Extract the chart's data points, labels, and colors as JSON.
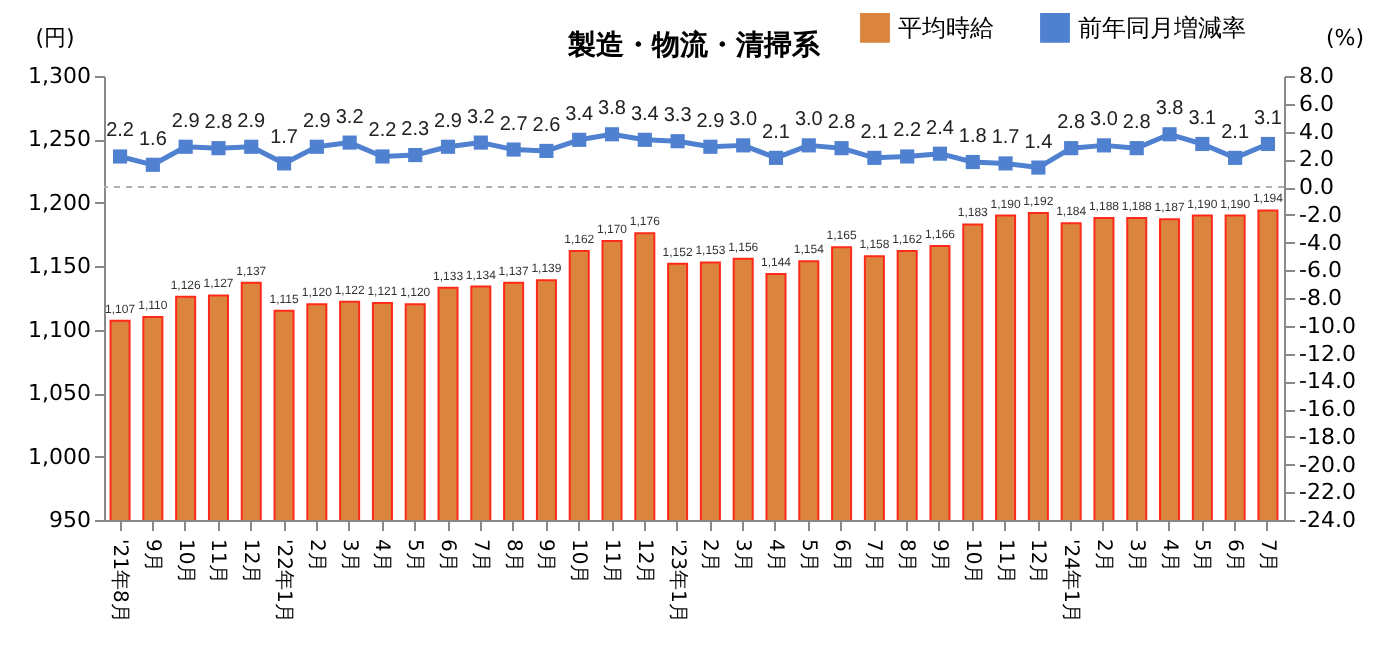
{
  "chart_data": {
    "type": "bar",
    "title": "製造・物流・清掃系",
    "ylabel": "(円)",
    "y2label": "(%)",
    "categories": [
      "'21年8月",
      "9月",
      "10月",
      "11月",
      "12月",
      "'22年1月",
      "2月",
      "3月",
      "4月",
      "5月",
      "6月",
      "7月",
      "8月",
      "9月",
      "10月",
      "11月",
      "12月",
      "'23年1月",
      "2月",
      "3月",
      "4月",
      "5月",
      "6月",
      "7月",
      "8月",
      "9月",
      "10月",
      "11月",
      "12月",
      "'24年1月",
      "2月",
      "3月",
      "4月",
      "5月",
      "6月",
      "7月"
    ],
    "series": [
      {
        "name": "平均時給",
        "color": "#db843d",
        "values": [
          1107,
          1110,
          1126,
          1127,
          1137,
          1115,
          1120,
          1122,
          1121,
          1120,
          1133,
          1134,
          1137,
          1139,
          1162,
          1170,
          1176,
          1152,
          1153,
          1156,
          1144,
          1154,
          1165,
          1158,
          1162,
          1166,
          1183,
          1190,
          1192,
          1184,
          1188,
          1188,
          1187,
          1190,
          1190,
          1194
        ],
        "value_labels": [
          "1,107",
          "1,110",
          "1,126",
          "1,127",
          "1,137",
          "1,115",
          "1,120",
          "1,122",
          "1,121",
          "1,120",
          "1,133",
          "1,134",
          "1,137",
          "1,139",
          "1,162",
          "1,170",
          "1,176",
          "1,152",
          "1,153",
          "1,156",
          "1,144",
          "1,154",
          "1,165",
          "1,158",
          "1,162",
          "1,166",
          "1,183",
          "1,190",
          "1,192",
          "1,184",
          "1,188",
          "1,188",
          "1,187",
          "1,190",
          "1,190",
          "1,194"
        ]
      },
      {
        "name": "前年同月増減率",
        "type": "line",
        "axis": "y2",
        "color": "#4f81d0",
        "marker": "square",
        "values": [
          2.2,
          1.6,
          2.9,
          2.8,
          2.9,
          1.7,
          2.9,
          3.2,
          2.2,
          2.3,
          2.9,
          3.2,
          2.7,
          2.6,
          3.4,
          3.8,
          3.4,
          3.3,
          2.9,
          3.0,
          2.1,
          3.0,
          2.8,
          2.1,
          2.2,
          2.4,
          1.8,
          1.7,
          1.4,
          2.8,
          3.0,
          2.8,
          3.8,
          3.1,
          2.1,
          3.1
        ],
        "value_labels": [
          "2.2",
          "1.6",
          "2.9",
          "2.8",
          "2.9",
          "1.7",
          "2.9",
          "3.2",
          "2.2",
          "2.3",
          "2.9",
          "3.2",
          "2.7",
          "2.6",
          "3.4",
          "3.8",
          "3.4",
          "3.3",
          "2.9",
          "3.0",
          "2.1",
          "3.0",
          "2.8",
          "2.1",
          "2.2",
          "2.4",
          "1.8",
          "1.7",
          "1.4",
          "2.8",
          "3.0",
          "2.8",
          "3.8",
          "3.1",
          "2.1",
          "3.1"
        ]
      }
    ],
    "ylim": [
      950,
      1300
    ],
    "yticks": [
      950,
      {
        "value": 1000,
        "label": "1,000"
      },
      {
        "value": 1050,
        "label": "1,050"
      },
      {
        "value": 1100,
        "label": "1,100"
      },
      {
        "value": 1150,
        "label": "1,150"
      },
      {
        "value": 1200,
        "label": "1,200"
      },
      {
        "value": 1250,
        "label": "1,250"
      },
      {
        "value": 1300,
        "label": "1,300"
      }
    ],
    "y2lim": [
      -24,
      8
    ],
    "y2ticks": [
      {
        "value": -24,
        "label": "-24.0"
      },
      {
        "value": -22,
        "label": "-22.0"
      },
      {
        "value": -20,
        "label": "-20.0"
      },
      {
        "value": -18,
        "label": "-18.0"
      },
      {
        "value": -16,
        "label": "-16.0"
      },
      {
        "value": -14,
        "label": "-14.0"
      },
      {
        "value": -12,
        "label": "-12.0"
      },
      {
        "value": -10,
        "label": "-10.0"
      },
      {
        "value": -8,
        "label": "-8.0"
      },
      {
        "value": -6,
        "label": "-6.0"
      },
      {
        "value": -4,
        "label": "-4.0"
      },
      {
        "value": -2,
        "label": "-2.0"
      },
      {
        "value": 0,
        "label": "0.0"
      },
      {
        "value": 2,
        "label": "2.0"
      },
      {
        "value": 4,
        "label": "4.0"
      },
      {
        "value": 6,
        "label": "6.0"
      },
      {
        "value": 8,
        "label": "8.0"
      }
    ],
    "ref_lines": [
      {
        "axis": "y2",
        "value": 0,
        "color": "#b0b0b0",
        "line_style": "dashed"
      }
    ],
    "legend": "top right",
    "grid": false
  }
}
